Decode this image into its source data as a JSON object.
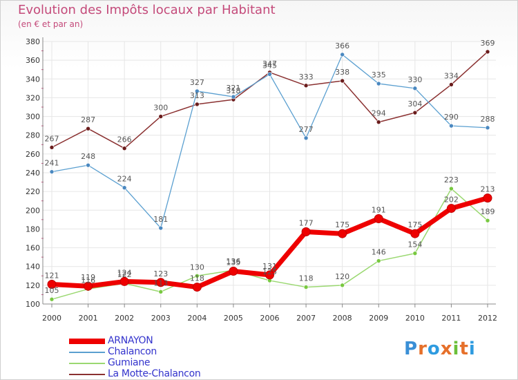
{
  "header": {
    "title": "Evolution des Impôts locaux par Habitant",
    "subtitle": "(en € et par an)"
  },
  "logo": {
    "text": "Proxiti",
    "colors": [
      "#3a8fd6",
      "#e6702a",
      "#2e9be0",
      "#e6702a",
      "#6bbf3a",
      "#e6702a",
      "#2e9be0"
    ]
  },
  "colors": {
    "title": "#c44a7a",
    "axis": "#888888",
    "grid": "#e6e6e6",
    "tick_marks": "#c44a7a"
  },
  "chart_data": {
    "type": "line",
    "title": "Evolution des Impôts locaux par Habitant",
    "subtitle": "(en € et par an)",
    "xlabel": "",
    "ylabel": "",
    "x": [
      "2000",
      "2001",
      "2002",
      "2003",
      "2004",
      "2005",
      "2006",
      "2007",
      "2008",
      "2009",
      "2010",
      "2011",
      "2012"
    ],
    "ylim": [
      100,
      380
    ],
    "yticks": [
      "100",
      "120",
      "140",
      "160",
      "180",
      "200",
      "220",
      "240",
      "260",
      "280",
      "300",
      "320",
      "340",
      "360",
      "380"
    ],
    "grid": true,
    "legend": "bottom-left",
    "series": [
      {
        "name": "ARNAYON",
        "color": "#ee0000",
        "point": "#ee0000",
        "text_color": "#3333cc",
        "values": [
          121,
          119,
          124,
          123,
          118,
          135,
          131,
          177,
          175,
          191,
          175,
          202,
          213
        ]
      },
      {
        "name": "Chalancon",
        "color": "#5a9fd0",
        "point": "#4a88c0",
        "text_color": "#3333cc",
        "values": [
          241,
          248,
          224,
          181,
          327,
          321,
          345,
          277,
          366,
          335,
          330,
          290,
          288
        ]
      },
      {
        "name": "Gumiane",
        "color": "#9ad870",
        "point": "#78c840",
        "text_color": "#3333cc",
        "values": [
          105,
          116,
          122,
          113,
          130,
          136,
          125,
          118,
          120,
          146,
          154,
          223,
          189
        ]
      },
      {
        "name": "La Motte-Chalancon",
        "color": "#8a3030",
        "point": "#6a1c1c",
        "text_color": "#3333cc",
        "values": [
          267,
          287,
          266,
          300,
          313,
          318,
          347,
          333,
          338,
          294,
          304,
          334,
          369
        ]
      }
    ]
  }
}
